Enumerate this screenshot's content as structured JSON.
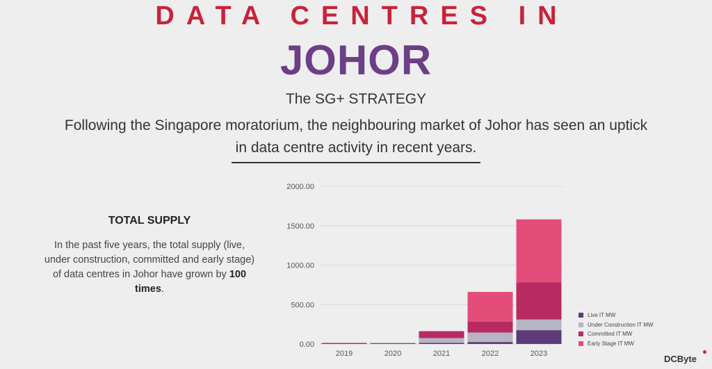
{
  "header": {
    "title_top": "DATA CENTRES IN",
    "title_main": "JOHOR",
    "subtitle": "The SG+ STRATEGY",
    "intro_line1": "Following the Singapore moratorium, the neighbouring market of Johor has seen an uptick",
    "intro_line2": "in data centre activity in recent years."
  },
  "supply": {
    "title": "TOTAL SUPPLY",
    "text": "In the past five years, the total supply (live, under construction, committed and early stage) of data centres in Johor have grown by ",
    "highlight": "100 times",
    "suffix": "."
  },
  "logo": {
    "text": "DCByte"
  },
  "colors": {
    "title_red": "#c8233a",
    "title_purple": "#6b3f86",
    "live": "#5c3b78",
    "under_construction": "#b7b4c4",
    "committed": "#b72a62",
    "early_stage": "#e44d79"
  },
  "chart_data": {
    "type": "bar",
    "stacked": true,
    "categories": [
      "2019",
      "2020",
      "2021",
      "2022",
      "2023"
    ],
    "series": [
      {
        "name": "Live IT MW",
        "color": "#5c3b78",
        "values": [
          8,
          8,
          15,
          25,
          175
        ]
      },
      {
        "name": "Under Construction IT MW",
        "color": "#b7b4c4",
        "values": [
          0,
          5,
          60,
          120,
          135
        ]
      },
      {
        "name": "Committed IT MW",
        "color": "#b72a62",
        "values": [
          5,
          2,
          85,
          140,
          470
        ]
      },
      {
        "name": "Early Stage IT MW",
        "color": "#e44d79",
        "values": [
          0,
          0,
          5,
          375,
          800
        ]
      }
    ],
    "y_ticks": [
      "0.00",
      "500.00",
      "1000.00",
      "1500.00",
      "2000.00"
    ],
    "ylim": [
      0,
      2000
    ],
    "grid": true,
    "legend_position": "right"
  }
}
